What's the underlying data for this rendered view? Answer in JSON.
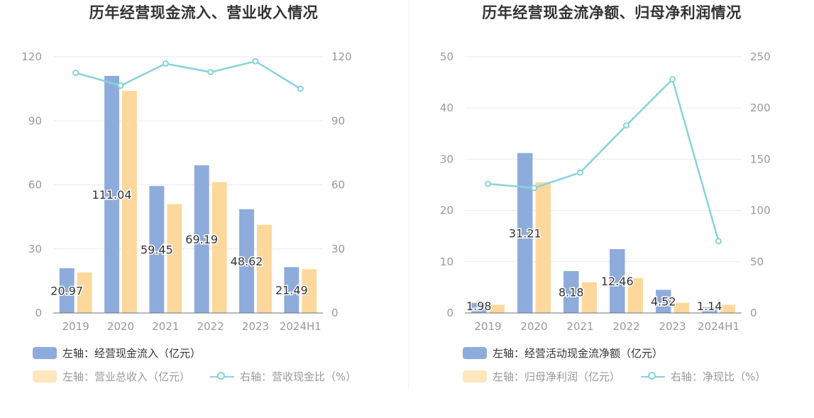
{
  "colors": {
    "bar_primary": "#8eacdb",
    "bar_secondary": "#fdd89c",
    "line": "#86d3db",
    "grid": "#e6e9f2",
    "axis_text": "#999999"
  },
  "chart_data": [
    {
      "type": "bar",
      "title": "历年经营现金流入、营业收入情况",
      "categories": [
        "2019",
        "2020",
        "2021",
        "2022",
        "2023",
        "2024H1"
      ],
      "left_axis": {
        "ylim": [
          0,
          120
        ],
        "ticks": [
          "0",
          "30",
          "60",
          "90",
          "120"
        ]
      },
      "right_axis": {
        "ylim": [
          0,
          120
        ],
        "ticks": [
          "0",
          "30",
          "60",
          "90",
          "120"
        ]
      },
      "grid": true,
      "series": [
        {
          "name": "左轴：经营现金流入（亿元）",
          "kind": "bar",
          "axis": "left",
          "values": [
            20.97,
            111.04,
            59.45,
            69.19,
            48.62,
            21.49
          ],
          "labels": [
            "20.97",
            "111.04",
            "59.45",
            "69.19",
            "48.62",
            "21.49"
          ]
        },
        {
          "name": "左轴：营业总收入（亿元）",
          "kind": "bar",
          "axis": "left",
          "values": [
            19,
            104,
            51,
            61.3,
            41.3,
            20.5
          ]
        },
        {
          "name": "右轴：营收现金比（%）",
          "kind": "line",
          "axis": "right",
          "values": [
            112.5,
            106.5,
            116.8,
            112.8,
            117.9,
            105
          ]
        }
      ],
      "legend_placement": "bottom-left"
    },
    {
      "type": "bar",
      "title": "历年经营现金流净额、归母净利润情况",
      "categories": [
        "2019",
        "2020",
        "2021",
        "2022",
        "2023",
        "2024H1"
      ],
      "left_axis": {
        "ylim": [
          0,
          50
        ],
        "ticks": [
          "0",
          "10",
          "20",
          "30",
          "40",
          "50"
        ]
      },
      "right_axis": {
        "ylim": [
          0,
          250
        ],
        "ticks": [
          "0",
          "50",
          "100",
          "150",
          "200",
          "250"
        ]
      },
      "grid": true,
      "series": [
        {
          "name": "左轴：经营活动现金流净额（亿元）",
          "kind": "bar",
          "axis": "left",
          "values": [
            1.98,
            31.21,
            8.18,
            12.46,
            4.52,
            1.14
          ],
          "labels": [
            "1.98",
            "31.21",
            "8.18",
            "12.46",
            "4.52",
            "1.14"
          ]
        },
        {
          "name": "左轴：归母净利润（亿元）",
          "kind": "bar",
          "axis": "left",
          "values": [
            1.6,
            25.5,
            6.0,
            6.8,
            2.0,
            1.6
          ]
        },
        {
          "name": "右轴：净现比（%）",
          "kind": "line",
          "axis": "right",
          "values": [
            126,
            122,
            137,
            183,
            228,
            70
          ]
        }
      ],
      "legend_placement": "bottom-left"
    }
  ]
}
